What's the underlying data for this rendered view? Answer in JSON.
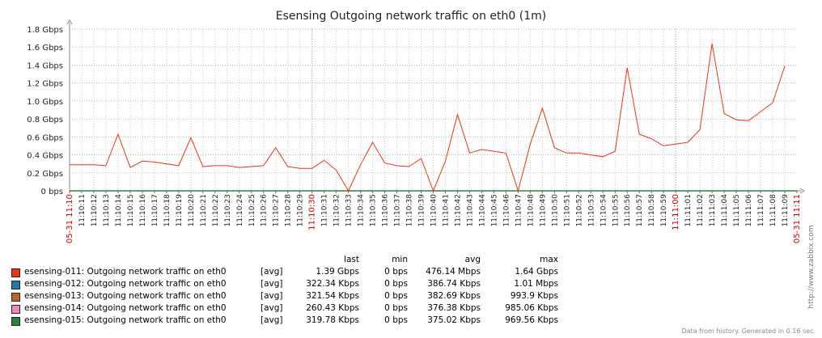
{
  "chart_data": {
    "type": "line",
    "title": "Esensing Outgoing network traffic on eth0 (1m)",
    "y_unit": "Gbps",
    "ylim": [
      0,
      1.8
    ],
    "y_ticks": [
      "0 bps",
      "0.2 Gbps",
      "0.4 Gbps",
      "0.6 Gbps",
      "0.8 Gbps",
      "1.0 Gbps",
      "1.2 Gbps",
      "1.4 Gbps",
      "1.6 Gbps",
      "1.8 Gbps"
    ],
    "x_ticks": [
      "05-31 11:10",
      "11:10:11",
      "11:10:12",
      "11:10:13",
      "11:10:14",
      "11:10:15",
      "11:10:16",
      "11:10:17",
      "11:10:18",
      "11:10:19",
      "11:10:20",
      "11:10:21",
      "11:10:22",
      "11:10:23",
      "11:10:24",
      "11:10:25",
      "11:10:26",
      "11:10:27",
      "11:10:28",
      "11:10:29",
      "11:10:30",
      "11:10:31",
      "11:10:32",
      "11:10:33",
      "11:10:34",
      "11:10:35",
      "11:10:36",
      "11:10:37",
      "11:10:38",
      "11:10:39",
      "11:10:40",
      "11:10:41",
      "11:10:42",
      "11:10:43",
      "11:10:44",
      "11:10:45",
      "11:10:46",
      "11:10:47",
      "11:10:48",
      "11:10:49",
      "11:10:50",
      "11:10:51",
      "11:10:52",
      "11:10:53",
      "11:10:54",
      "11:10:55",
      "11:10:56",
      "11:10:57",
      "11:10:58",
      "11:10:59",
      "11:11:00",
      "11:11:01",
      "11:11:02",
      "11:11:03",
      "11:11:04",
      "11:11:05",
      "11:11:06",
      "11:11:07",
      "11:11:08",
      "11:11:09",
      "05-31 11:11"
    ],
    "major_ticks": [
      0,
      20,
      50,
      60
    ],
    "grid": true,
    "series": [
      {
        "name": "esensing-011: Outgoing network traffic on eth0",
        "color": "#ee3311",
        "x": [
          0,
          2,
          3,
          4,
          5,
          6,
          7,
          9,
          10,
          11,
          12,
          13,
          14,
          15,
          16,
          17,
          18,
          19,
          20,
          21,
          22,
          23,
          24,
          25,
          26,
          27,
          28,
          29,
          30,
          31,
          32,
          33,
          34,
          35,
          36,
          37,
          38,
          39,
          40,
          41,
          42,
          43,
          44,
          45,
          46,
          47,
          48,
          49,
          50,
          51,
          52,
          53,
          54,
          55,
          56,
          58,
          59
        ],
        "values": [
          0.29,
          0.29,
          0.28,
          0.63,
          0.26,
          0.33,
          0.32,
          0.28,
          0.59,
          0.27,
          0.28,
          0.28,
          0.26,
          0.27,
          0.28,
          0.48,
          0.27,
          0.25,
          0.25,
          0.34,
          0.23,
          0.0,
          0.29,
          0.54,
          0.31,
          0.28,
          0.27,
          0.36,
          0.0,
          0.33,
          0.85,
          0.42,
          0.46,
          0.44,
          0.42,
          0.0,
          0.52,
          0.92,
          0.48,
          0.42,
          0.42,
          0.4,
          0.38,
          0.44,
          1.37,
          0.63,
          0.58,
          0.5,
          0.52,
          0.54,
          0.68,
          1.64,
          0.86,
          0.79,
          0.78,
          0.98,
          1.39
        ]
      },
      {
        "name": "esensing-015: Outgoing network traffic on eth0",
        "color": "#228833",
        "x": [
          0,
          60
        ],
        "values": [
          0,
          0
        ]
      }
    ]
  },
  "legend": {
    "headers": {
      "last": "last",
      "min": "min",
      "avg": "avg",
      "max": "max"
    },
    "rows": [
      {
        "color": "#ee3311",
        "name": "esensing-011: Outgoing network traffic on eth0",
        "func": "[avg]",
        "last": "1.39 Gbps",
        "min": "0 bps",
        "avg": "476.14 Mbps",
        "max": "1.64 Gbps"
      },
      {
        "color": "#2277aa",
        "name": "esensing-012: Outgoing network traffic on eth0",
        "func": "[avg]",
        "last": "322.34 Kbps",
        "min": "0 bps",
        "avg": "386.74 Kbps",
        "max": "1.01 Mbps"
      },
      {
        "color": "#bb6622",
        "name": "esensing-013: Outgoing network traffic on eth0",
        "func": "[avg]",
        "last": "321.54 Kbps",
        "min": "0 bps",
        "avg": "382.69 Kbps",
        "max": "993.9 Kbps"
      },
      {
        "color": "#ee88bb",
        "name": "esensing-014: Outgoing network traffic on eth0",
        "func": "[avg]",
        "last": "260.43 Kbps",
        "min": "0 bps",
        "avg": "376.38 Kbps",
        "max": "985.06 Kbps"
      },
      {
        "color": "#228833",
        "name": "esensing-015: Outgoing network traffic on eth0",
        "func": "[avg]",
        "last": "319.78 Kbps",
        "min": "0 bps",
        "avg": "375.02 Kbps",
        "max": "969.56 Kbps"
      }
    ]
  },
  "side_label": "http://www.zabbix.com",
  "footer": "Data from history. Generated in 0.16 sec."
}
